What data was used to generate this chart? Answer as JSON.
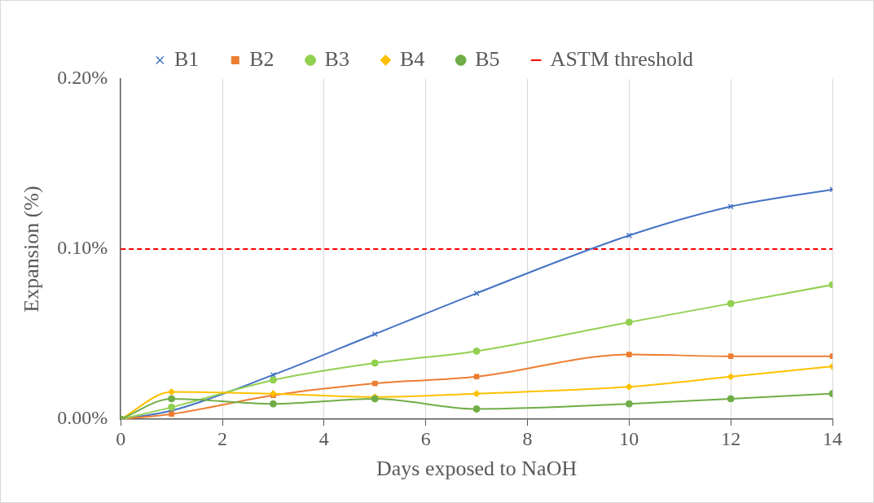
{
  "chart_data": {
    "type": "line",
    "xlabel": "Days exposed to NaOH",
    "ylabel": "Expansion (%)",
    "xlim": [
      0,
      14
    ],
    "xticks": [
      0,
      2,
      4,
      6,
      8,
      10,
      12,
      14
    ],
    "ylim": [
      0,
      0.2
    ],
    "yticks": [
      {
        "value": 0,
        "label": "0.00%"
      },
      {
        "value": 0.1,
        "label": "0.10%"
      },
      {
        "value": 0.2,
        "label": "0.20%"
      }
    ],
    "grid": "x",
    "legend": "top",
    "line_style": "solid",
    "x": [
      0,
      1,
      3,
      5,
      7,
      10,
      12,
      14
    ],
    "series": [
      {
        "name": "B1",
        "color": "#4472c4",
        "marker": "cross",
        "values": [
          0,
          0.005,
          0.026,
          0.05,
          0.074,
          0.108,
          0.125,
          0.135
        ]
      },
      {
        "name": "B2",
        "color": "#ed7d31",
        "marker": "square",
        "values": [
          0,
          0.003,
          0.014,
          0.021,
          0.025,
          0.038,
          0.037,
          0.037
        ]
      },
      {
        "name": "B3",
        "color": "#92d050",
        "marker": "circle",
        "values": [
          0,
          0.007,
          0.023,
          0.033,
          0.04,
          0.057,
          0.068,
          0.079
        ]
      },
      {
        "name": "B4",
        "color": "#ffc000",
        "marker": "diamond",
        "values": [
          0,
          0.016,
          0.015,
          0.013,
          0.015,
          0.019,
          0.025,
          0.031
        ]
      },
      {
        "name": "B5",
        "color": "#70ad47",
        "marker": "circle",
        "values": [
          0,
          0.012,
          0.009,
          0.012,
          0.006,
          0.009,
          0.012,
          0.015
        ]
      }
    ],
    "ref_lines": [
      {
        "axis": "y",
        "value": 0.1,
        "label": "ASTM threshold",
        "color": "#ff0000",
        "line_style": "dashed"
      }
    ]
  }
}
